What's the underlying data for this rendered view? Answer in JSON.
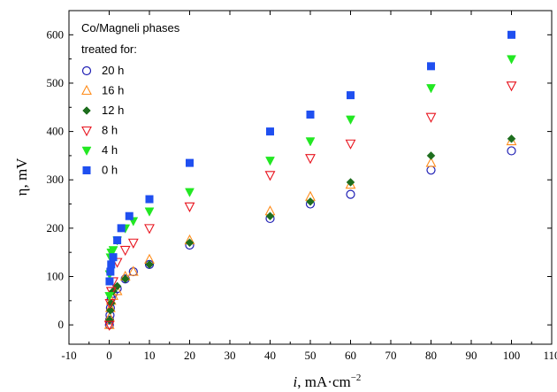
{
  "chart_data": {
    "type": "scatter",
    "title": "",
    "xlabel_italic": "i",
    "xlabel_rest": ", mA·cm",
    "xlabel_sup": "−2",
    "ylabel": "η, mV",
    "xlim": [
      -10,
      110
    ],
    "ylim": [
      -40,
      650
    ],
    "xticks": [
      -10,
      0,
      10,
      20,
      30,
      40,
      50,
      60,
      70,
      80,
      90,
      100,
      110
    ],
    "yticks": [
      0,
      100,
      200,
      300,
      400,
      500,
      600
    ],
    "legend": {
      "title_line1": "Co/Magneli phases",
      "title_line2": "treated for:",
      "placement": "top-left"
    },
    "series": [
      {
        "name": "20 h",
        "marker": "circle-open",
        "color": "#1f1fb4",
        "points": [
          [
            0.05,
            0
          ],
          [
            0.1,
            10
          ],
          [
            0.2,
            20
          ],
          [
            0.3,
            35
          ],
          [
            0.5,
            55
          ],
          [
            1,
            65
          ],
          [
            2,
            75
          ],
          [
            4,
            95
          ],
          [
            6,
            110
          ],
          [
            10,
            125
          ],
          [
            20,
            165
          ],
          [
            40,
            220
          ],
          [
            50,
            250
          ],
          [
            60,
            270
          ],
          [
            80,
            320
          ],
          [
            100,
            360
          ]
        ]
      },
      {
        "name": "16 h",
        "marker": "triangle-up-open",
        "color": "#ff8c1a",
        "points": [
          [
            0.05,
            0
          ],
          [
            0.1,
            15
          ],
          [
            0.3,
            35
          ],
          [
            0.5,
            50
          ],
          [
            1,
            60
          ],
          [
            2,
            70
          ],
          [
            4,
            100
          ],
          [
            6,
            110
          ],
          [
            10,
            135
          ],
          [
            20,
            175
          ],
          [
            40,
            235
          ],
          [
            50,
            265
          ],
          [
            60,
            290
          ],
          [
            80,
            335
          ],
          [
            100,
            380
          ]
        ]
      },
      {
        "name": "12 h",
        "marker": "diamond-filled",
        "color": "#1e6e1e",
        "points": [
          [
            0.1,
            10
          ],
          [
            0.3,
            30
          ],
          [
            0.5,
            45
          ],
          [
            1,
            70
          ],
          [
            2,
            80
          ],
          [
            4,
            95
          ],
          [
            10,
            125
          ],
          [
            20,
            170
          ],
          [
            40,
            225
          ],
          [
            50,
            255
          ],
          [
            60,
            295
          ],
          [
            80,
            350
          ],
          [
            100,
            385
          ]
        ]
      },
      {
        "name": "8 h",
        "marker": "triangle-down-open",
        "color": "#e8141e",
        "points": [
          [
            0.05,
            0
          ],
          [
            0.2,
            45
          ],
          [
            0.5,
            70
          ],
          [
            1,
            90
          ],
          [
            2,
            130
          ],
          [
            4,
            155
          ],
          [
            6,
            170
          ],
          [
            10,
            200
          ],
          [
            20,
            245
          ],
          [
            40,
            310
          ],
          [
            50,
            345
          ],
          [
            60,
            375
          ],
          [
            80,
            430
          ],
          [
            100,
            495
          ]
        ]
      },
      {
        "name": "4 h",
        "marker": "triangle-down-filled",
        "color": "#22e822",
        "points": [
          [
            0.05,
            60
          ],
          [
            0.1,
            105
          ],
          [
            0.3,
            140
          ],
          [
            0.5,
            150
          ],
          [
            1,
            155
          ],
          [
            2,
            175
          ],
          [
            4,
            200
          ],
          [
            6,
            215
          ],
          [
            10,
            235
          ],
          [
            20,
            275
          ],
          [
            40,
            340
          ],
          [
            50,
            380
          ],
          [
            60,
            425
          ],
          [
            80,
            490
          ],
          [
            100,
            550
          ]
        ]
      },
      {
        "name": "0 h",
        "marker": "square-filled",
        "color": "#1f4ff0",
        "points": [
          [
            0.1,
            90
          ],
          [
            0.3,
            110
          ],
          [
            0.5,
            125
          ],
          [
            1,
            140
          ],
          [
            2,
            175
          ],
          [
            3,
            200
          ],
          [
            5,
            225
          ],
          [
            10,
            260
          ],
          [
            20,
            335
          ],
          [
            40,
            400
          ],
          [
            50,
            435
          ],
          [
            60,
            475
          ],
          [
            80,
            535
          ],
          [
            100,
            600
          ]
        ]
      }
    ]
  }
}
